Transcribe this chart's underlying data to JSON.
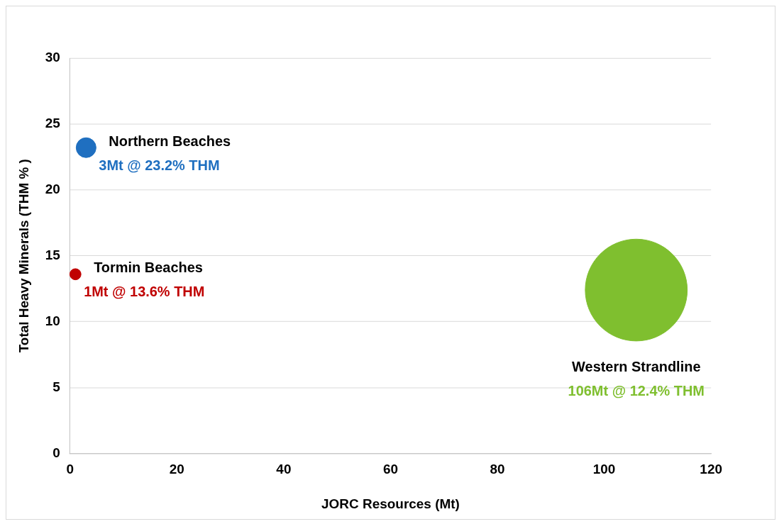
{
  "chart_data": {
    "type": "bubble",
    "xlabel": "JORC Resources (Mt)",
    "ylabel": "Total Heavy Minerals (THM % )",
    "xlim": [
      0,
      120
    ],
    "xticks": [
      0,
      20,
      40,
      60,
      80,
      100,
      120
    ],
    "ylim": [
      0,
      30
    ],
    "yticks": [
      0,
      5,
      10,
      15,
      20,
      25,
      30
    ],
    "grid": "y",
    "legend": false,
    "series": [
      {
        "name": "Northern Beaches",
        "color": "#1f6fc0",
        "x": [
          3
        ],
        "values": [
          23.2
        ],
        "sizes": [
          0.038
        ],
        "value_labels": [
          "3Mt @ 23.2% THM"
        ]
      },
      {
        "name": "Tormin Beaches",
        "color": "#c00000",
        "x": [
          1
        ],
        "values": [
          13.6
        ],
        "sizes": [
          0.012
        ],
        "value_labels": [
          "1Mt @ 13.6% THM"
        ]
      },
      {
        "name": "Western Strandline",
        "color": "#7fbf2f",
        "x": [
          106
        ],
        "values": [
          12.4
        ],
        "sizes": [
          1
        ],
        "value_labels": [
          "106Mt @ 12.4% THM"
        ]
      }
    ]
  }
}
